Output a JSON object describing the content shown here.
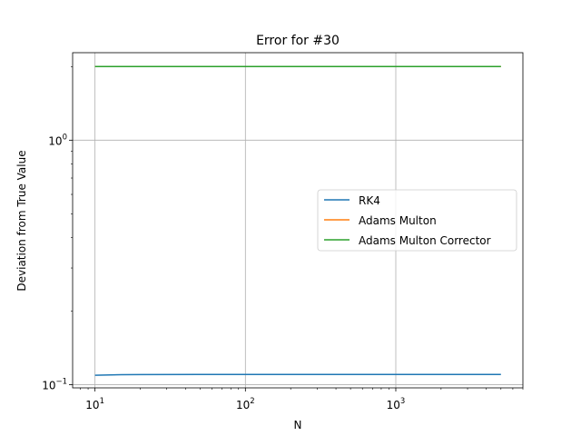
{
  "chart_data": {
    "type": "line",
    "title": "Error for #30",
    "xlabel": "N",
    "ylabel": "Deviation from True Value",
    "xscale": "log",
    "yscale": "log",
    "xlim": [
      7.1,
      7000
    ],
    "ylim": [
      0.097,
      2.28
    ],
    "grid": true,
    "legend_position": "center-right",
    "x_ticks": [
      {
        "value": 10,
        "base": "10",
        "exp": "1"
      },
      {
        "value": 100,
        "base": "10",
        "exp": "2"
      },
      {
        "value": 1000,
        "base": "10",
        "exp": "3"
      }
    ],
    "y_ticks": [
      {
        "value": 0.1,
        "base": "10",
        "exp": "−1"
      },
      {
        "value": 1,
        "base": "10",
        "exp": "0"
      }
    ],
    "x": [
      10,
      15,
      20,
      50,
      100,
      200,
      500,
      1000,
      2000,
      5000
    ],
    "series": [
      {
        "name": "RK4",
        "color": "#1f77b4",
        "values": [
          0.1092,
          0.1098,
          0.1099,
          0.11,
          0.11,
          0.11,
          0.11,
          0.11,
          0.11,
          0.11
        ]
      },
      {
        "name": "Adams Multon",
        "color": "#ff7f0e",
        "values": [
          2.0,
          2.0,
          2.0,
          2.0,
          2.0,
          2.0,
          2.0,
          2.0,
          2.0,
          2.0
        ]
      },
      {
        "name": "Adams Multon Corrector",
        "color": "#2ca02c",
        "values": [
          2.0,
          2.0,
          2.0,
          2.0,
          2.0,
          2.0,
          2.0,
          2.0,
          2.0,
          2.0
        ]
      }
    ]
  }
}
